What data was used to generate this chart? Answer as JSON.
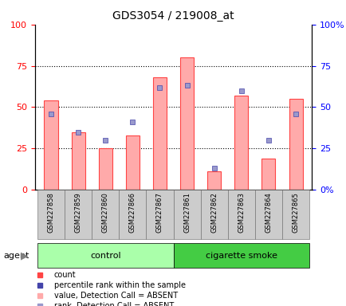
{
  "title": "GDS3054 / 219008_at",
  "samples": [
    "GSM227858",
    "GSM227859",
    "GSM227860",
    "GSM227866",
    "GSM227867",
    "GSM227861",
    "GSM227862",
    "GSM227863",
    "GSM227864",
    "GSM227865"
  ],
  "bar_values": [
    54,
    35,
    25,
    33,
    68,
    80,
    11,
    57,
    19,
    55
  ],
  "rank_values": [
    46,
    35,
    30,
    41,
    62,
    63,
    13,
    60,
    30,
    46
  ],
  "bar_color": "#ffaaaa",
  "rank_color": "#9999cc",
  "bar_edge_color": "#ff4444",
  "rank_edge_color": "#4444aa",
  "control_label": "control",
  "smoke_label": "cigarette smoke",
  "agent_label": "agent",
  "n_control": 5,
  "n_smoke": 5,
  "ylim": [
    0,
    100
  ],
  "yticks": [
    0,
    25,
    50,
    75,
    100
  ],
  "ytick_labels_left": [
    "0",
    "25",
    "50",
    "75",
    "100"
  ],
  "ytick_labels_right": [
    "0%",
    "25",
    "50",
    "75",
    "100%"
  ],
  "xlabel_rotation": 90,
  "legend_items": [
    {
      "label": "count",
      "color": "#ff4444",
      "marker": "s"
    },
    {
      "label": "percentile rank within the sample",
      "color": "#4444aa",
      "marker": "s"
    },
    {
      "label": "value, Detection Call = ABSENT",
      "color": "#ffaaaa",
      "marker": "s"
    },
    {
      "label": "rank, Detection Call = ABSENT",
      "color": "#9999cc",
      "marker": "s"
    }
  ],
  "control_bg": "#aaffaa",
  "smoke_bg": "#00cc00",
  "xticklabel_bg": "#cccccc",
  "bar_width": 0.5
}
